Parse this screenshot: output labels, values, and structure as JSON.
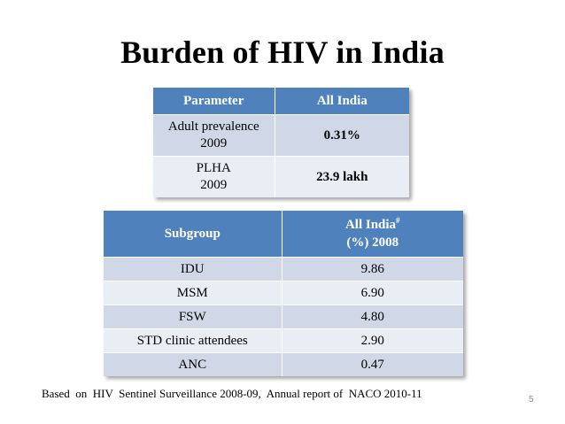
{
  "title": "Burden of HIV in India",
  "table1": {
    "headers": [
      "Parameter",
      "All India"
    ],
    "rows": [
      {
        "param_line1": "Adult prevalence",
        "param_line2": "2009",
        "value": "0.31%"
      },
      {
        "param_line1": "PLHA",
        "param_line2": "2009",
        "value": "23.9 lakh"
      }
    ]
  },
  "table2": {
    "header_subgroup": "Subgroup",
    "header_allindia_line1": "All India",
    "header_allindia_sup": "#",
    "header_allindia_line2": "(%) 2008",
    "rows": [
      {
        "subgroup": "IDU",
        "value": "9.86"
      },
      {
        "subgroup": "MSM",
        "value": "6.90"
      },
      {
        "subgroup": "FSW",
        "value": "4.80"
      },
      {
        "subgroup": "STD clinic attendees",
        "value": "2.90"
      },
      {
        "subgroup": "ANC",
        "value": "0.47"
      }
    ]
  },
  "footnote": "Based  on  HIV  Sentinel Surveillance 2008-09,  Annual report of  NACO 2010-11",
  "page_number": "5",
  "colors": {
    "header_blue": "#4f81bd",
    "row_dark": "#d0d8e8",
    "row_light": "#e9edf4"
  }
}
